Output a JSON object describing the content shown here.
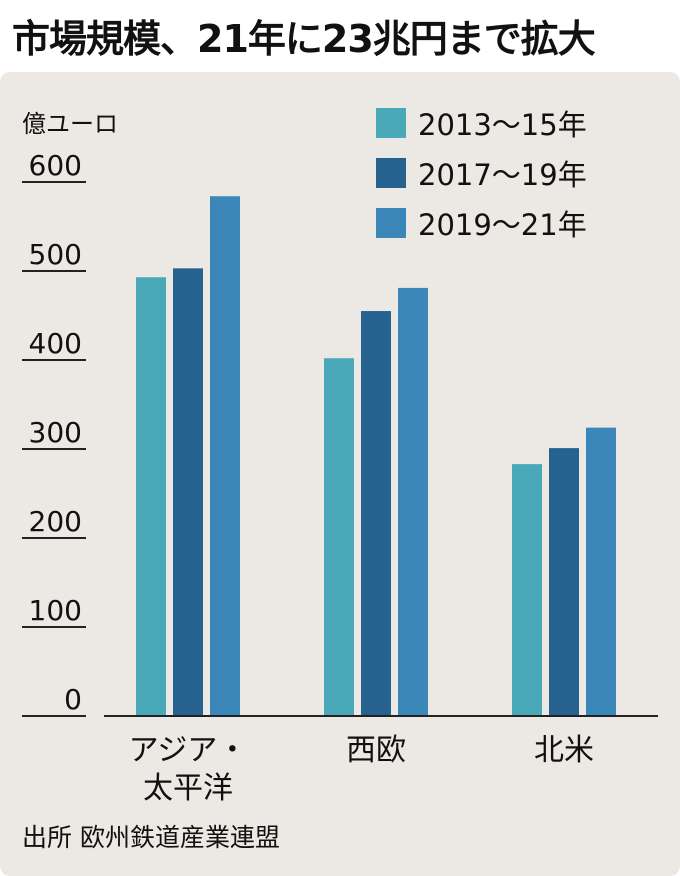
{
  "title": "市場規模、21年に23兆円まで拡大",
  "source": "出所 欧州鉄道産業連盟",
  "chart_data": {
    "type": "bar",
    "ylabel": "億ユーロ",
    "ylim": [
      0,
      600
    ],
    "yticks": [
      "0",
      "100",
      "200",
      "300",
      "400",
      "500",
      "600"
    ],
    "categories": [
      [
        "アジア・",
        "太平洋"
      ],
      [
        "西欧"
      ],
      [
        "北米"
      ]
    ],
    "series": [
      {
        "name": "2013〜15年",
        "values": [
          493,
          402,
          283
        ],
        "color": "#4aa9b8"
      },
      {
        "name": "2017〜19年",
        "values": [
          503,
          455,
          301
        ],
        "color": "#26628f"
      },
      {
        "name": "2019〜21年",
        "values": [
          584,
          481,
          324
        ],
        "color": "#3c87b9"
      }
    ]
  }
}
